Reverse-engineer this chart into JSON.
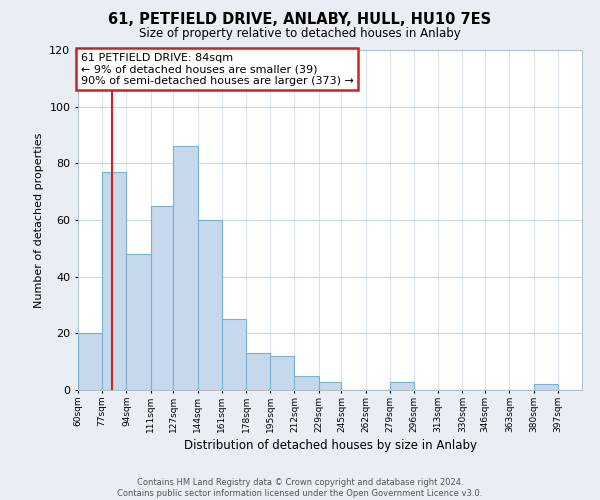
{
  "title": "61, PETFIELD DRIVE, ANLABY, HULL, HU10 7ES",
  "subtitle": "Size of property relative to detached houses in Anlaby",
  "xlabel": "Distribution of detached houses by size in Anlaby",
  "ylabel": "Number of detached properties",
  "bin_labels": [
    "60sqm",
    "77sqm",
    "94sqm",
    "111sqm",
    "127sqm",
    "144sqm",
    "161sqm",
    "178sqm",
    "195sqm",
    "212sqm",
    "229sqm",
    "245sqm",
    "262sqm",
    "279sqm",
    "296sqm",
    "313sqm",
    "330sqm",
    "346sqm",
    "363sqm",
    "380sqm",
    "397sqm"
  ],
  "bar_heights": [
    20,
    77,
    48,
    65,
    86,
    60,
    25,
    13,
    12,
    5,
    3,
    0,
    0,
    3,
    0,
    0,
    0,
    0,
    0,
    2,
    0
  ],
  "bar_color": "#c6d9ec",
  "bar_edge_color": "#7aafd4",
  "ylim": [
    0,
    120
  ],
  "yticks": [
    0,
    20,
    40,
    60,
    80,
    100,
    120
  ],
  "property_line_x": 84,
  "bin_edges_values": [
    60,
    77,
    94,
    111,
    127,
    144,
    161,
    178,
    195,
    212,
    229,
    245,
    262,
    279,
    296,
    313,
    330,
    346,
    363,
    380,
    397,
    414
  ],
  "annotation_box_text": "61 PETFIELD DRIVE: 84sqm\n← 9% of detached houses are smaller (39)\n90% of semi-detached houses are larger (373) →",
  "annotation_box_color": "#ffffff",
  "annotation_box_edge_color": "#cc2222",
  "red_line_color": "#cc2222",
  "footer_line1": "Contains HM Land Registry data © Crown copyright and database right 2024.",
  "footer_line2": "Contains public sector information licensed under the Open Government Licence v3.0.",
  "background_color": "#e8eef4",
  "plot_bg_color": "#ffffff",
  "grid_color": "#c8d8e8"
}
